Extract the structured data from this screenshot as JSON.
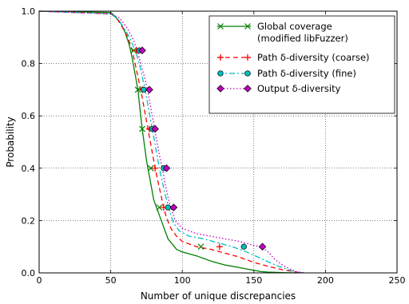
{
  "chart_data": {
    "type": "line",
    "xlabel": "Number of unique discrepancies",
    "ylabel": "Probability",
    "xlim": [
      0,
      250
    ],
    "ylim": [
      0,
      1.0
    ],
    "x_ticks": [
      0,
      50,
      100,
      150,
      200,
      250
    ],
    "y_ticks": [
      0.0,
      0.2,
      0.4,
      0.6,
      0.8,
      1.0
    ],
    "x_tick_labels": [
      "0",
      "50",
      "100",
      "150",
      "200",
      "250"
    ],
    "y_tick_labels": [
      "0.0",
      "0.2",
      "0.4",
      "0.6",
      "0.8",
      "1.0"
    ],
    "grid": true,
    "legend_position": "top-right",
    "series": [
      {
        "name_lines": [
          "Global coverage",
          "(modified libFuzzer)"
        ],
        "color": "#008000",
        "dash": "solid",
        "marker": "x",
        "x": [
          0,
          50,
          53,
          57,
          60,
          63,
          65,
          67,
          69,
          70,
          71,
          72,
          73,
          74,
          75,
          76,
          77,
          78,
          79,
          80,
          82,
          84,
          86,
          88,
          90,
          93,
          96,
          100,
          110,
          120,
          130,
          140,
          145,
          150,
          155,
          160,
          170,
          180
        ],
        "y": [
          1.0,
          0.995,
          0.98,
          0.955,
          0.92,
          0.87,
          0.82,
          0.76,
          0.7,
          0.65,
          0.6,
          0.55,
          0.51,
          0.47,
          0.43,
          0.4,
          0.37,
          0.34,
          0.31,
          0.28,
          0.25,
          0.22,
          0.19,
          0.16,
          0.13,
          0.11,
          0.09,
          0.08,
          0.065,
          0.045,
          0.03,
          0.02,
          0.015,
          0.01,
          0.005,
          0.003,
          0.001,
          0.0
        ],
        "marker_points": [
          [
            66,
            0.85
          ],
          [
            69,
            0.7
          ],
          [
            72,
            0.55
          ],
          [
            78,
            0.4
          ],
          [
            84,
            0.25
          ],
          [
            113,
            0.1
          ]
        ]
      },
      {
        "name_lines": [
          "Path δ-diversity (coarse)"
        ],
        "color": "#ff0000",
        "dash": "6,4",
        "marker": "+",
        "x": [
          0,
          50,
          54,
          58,
          62,
          65,
          67,
          69,
          71,
          73,
          75,
          77,
          79,
          81,
          83,
          85,
          87,
          89,
          92,
          96,
          100,
          110,
          120,
          130,
          140,
          145,
          150,
          160,
          170,
          180,
          183
        ],
        "y": [
          1.0,
          0.99,
          0.975,
          0.94,
          0.9,
          0.85,
          0.8,
          0.75,
          0.7,
          0.64,
          0.58,
          0.52,
          0.46,
          0.4,
          0.35,
          0.3,
          0.25,
          0.21,
          0.17,
          0.14,
          0.12,
          0.1,
          0.09,
          0.075,
          0.06,
          0.05,
          0.04,
          0.025,
          0.012,
          0.003,
          0.0
        ],
        "marker_points": [
          [
            68,
            0.85
          ],
          [
            72,
            0.7
          ],
          [
            77,
            0.55
          ],
          [
            81,
            0.4
          ],
          [
            87,
            0.25
          ],
          [
            126,
            0.1
          ]
        ]
      },
      {
        "name_lines": [
          "Path δ-diversity (fine)"
        ],
        "color": "#00bfbf",
        "dash": "7,3,2,3",
        "marker": "o",
        "x": [
          0,
          50,
          55,
          60,
          64,
          67,
          70,
          72,
          74,
          76,
          78,
          80,
          82,
          84,
          86,
          88,
          90,
          92,
          94,
          98,
          105,
          115,
          125,
          135,
          145,
          155,
          165,
          175,
          180,
          185
        ],
        "y": [
          1.0,
          0.99,
          0.97,
          0.93,
          0.89,
          0.85,
          0.8,
          0.75,
          0.7,
          0.64,
          0.58,
          0.52,
          0.46,
          0.4,
          0.35,
          0.3,
          0.26,
          0.22,
          0.19,
          0.16,
          0.14,
          0.13,
          0.115,
          0.1,
          0.08,
          0.055,
          0.03,
          0.01,
          0.003,
          0.0
        ],
        "marker_points": [
          [
            70,
            0.85
          ],
          [
            73,
            0.7
          ],
          [
            79,
            0.55
          ],
          [
            87,
            0.4
          ],
          [
            90,
            0.25
          ],
          [
            143,
            0.1
          ]
        ]
      },
      {
        "name_lines": [
          "Output δ-diversity"
        ],
        "color": "#bf00bf",
        "dash": "1.5,2.5",
        "marker": "D",
        "x": [
          0,
          50,
          56,
          61,
          65,
          68,
          71,
          74,
          76,
          78,
          80,
          82,
          84,
          86,
          88,
          90,
          92,
          95,
          100,
          110,
          120,
          130,
          140,
          150,
          155,
          160,
          165,
          170,
          175,
          180,
          185
        ],
        "y": [
          1.0,
          0.99,
          0.975,
          0.94,
          0.9,
          0.86,
          0.8,
          0.74,
          0.69,
          0.63,
          0.57,
          0.51,
          0.45,
          0.4,
          0.34,
          0.29,
          0.25,
          0.2,
          0.17,
          0.15,
          0.14,
          0.13,
          0.12,
          0.105,
          0.1,
          0.08,
          0.05,
          0.03,
          0.015,
          0.004,
          0.0
        ],
        "marker_points": [
          [
            72,
            0.85
          ],
          [
            77,
            0.7
          ],
          [
            81,
            0.55
          ],
          [
            89,
            0.4
          ],
          [
            94,
            0.25
          ],
          [
            156,
            0.1
          ]
        ]
      }
    ]
  }
}
